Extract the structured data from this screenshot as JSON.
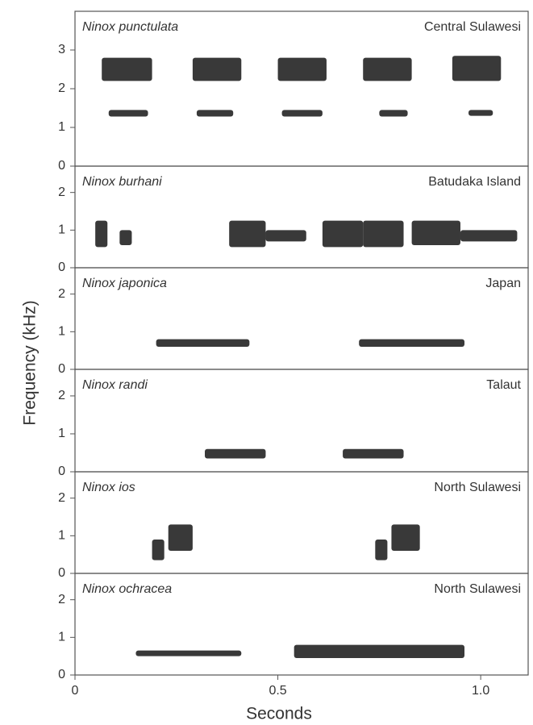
{
  "chart_data": {
    "type": "spectrogram",
    "xlabel": "Seconds",
    "ylabel": "Frequency (kHz)",
    "xlim": [
      0,
      1.117
    ],
    "xticks": [
      0,
      0.5,
      {
        "value": 1,
        "label": "1.0"
      }
    ],
    "color": "#1e1e1e",
    "panels": [
      {
        "title": "Ninox punctulata",
        "subtitle": "Central Sulawesi",
        "ylim": [
          0,
          4.0
        ],
        "yticks": [
          0,
          1,
          2,
          3
        ],
        "notes": [
          [
            0.066,
            0.19,
            2.2,
            2.8
          ],
          [
            0.29,
            0.41,
            2.2,
            2.8
          ],
          [
            0.5,
            0.62,
            2.2,
            2.8
          ],
          [
            0.71,
            0.83,
            2.2,
            2.8
          ],
          [
            0.93,
            1.05,
            2.2,
            2.85
          ],
          [
            0.083,
            0.18,
            1.28,
            1.45
          ],
          [
            0.3,
            0.39,
            1.28,
            1.45
          ],
          [
            0.51,
            0.61,
            1.28,
            1.45
          ],
          [
            0.75,
            0.82,
            1.28,
            1.45
          ],
          [
            0.97,
            1.03,
            1.3,
            1.45
          ]
        ]
      },
      {
        "title": "Ninox burhani",
        "subtitle": "Batudaka Island",
        "ylim": [
          0,
          2.7
        ],
        "yticks": [
          0,
          1,
          2
        ],
        "notes": [
          [
            0.05,
            0.08,
            0.55,
            1.25
          ],
          [
            0.11,
            0.14,
            0.6,
            1.0
          ],
          [
            0.38,
            0.47,
            0.55,
            1.25
          ],
          [
            0.47,
            0.57,
            0.7,
            1.0
          ],
          [
            0.61,
            0.71,
            0.55,
            1.25
          ],
          [
            0.71,
            0.81,
            0.55,
            1.25
          ],
          [
            0.83,
            0.95,
            0.6,
            1.25
          ],
          [
            0.95,
            1.09,
            0.7,
            1.0
          ]
        ]
      },
      {
        "title": "Ninox japonica",
        "subtitle": "Japan",
        "ylim": [
          0,
          2.7
        ],
        "yticks": [
          0,
          1,
          2
        ],
        "notes": [
          [
            0.2,
            0.43,
            0.6,
            0.8
          ],
          [
            0.7,
            0.96,
            0.6,
            0.8
          ]
        ]
      },
      {
        "title": "Ninox randi",
        "subtitle": "Talaut",
        "ylim": [
          0,
          2.7
        ],
        "yticks": [
          0,
          1,
          2
        ],
        "notes": [
          [
            0.32,
            0.47,
            0.35,
            0.6
          ],
          [
            0.66,
            0.81,
            0.35,
            0.6
          ]
        ]
      },
      {
        "title": "Ninox ios",
        "subtitle": "North Sulawesi",
        "ylim": [
          0,
          2.7
        ],
        "yticks": [
          0,
          1,
          2
        ],
        "notes": [
          [
            0.19,
            0.22,
            0.35,
            0.9
          ],
          [
            0.23,
            0.29,
            0.6,
            1.3
          ],
          [
            0.74,
            0.77,
            0.35,
            0.9
          ],
          [
            0.78,
            0.85,
            0.6,
            1.3
          ]
        ]
      },
      {
        "title": "Ninox ochracea",
        "subtitle": "North Sulawesi",
        "ylim": [
          0,
          2.7
        ],
        "yticks": [
          0,
          1,
          2
        ],
        "notes": [
          [
            0.15,
            0.41,
            0.5,
            0.65
          ],
          [
            0.54,
            0.96,
            0.45,
            0.8
          ]
        ]
      }
    ]
  }
}
